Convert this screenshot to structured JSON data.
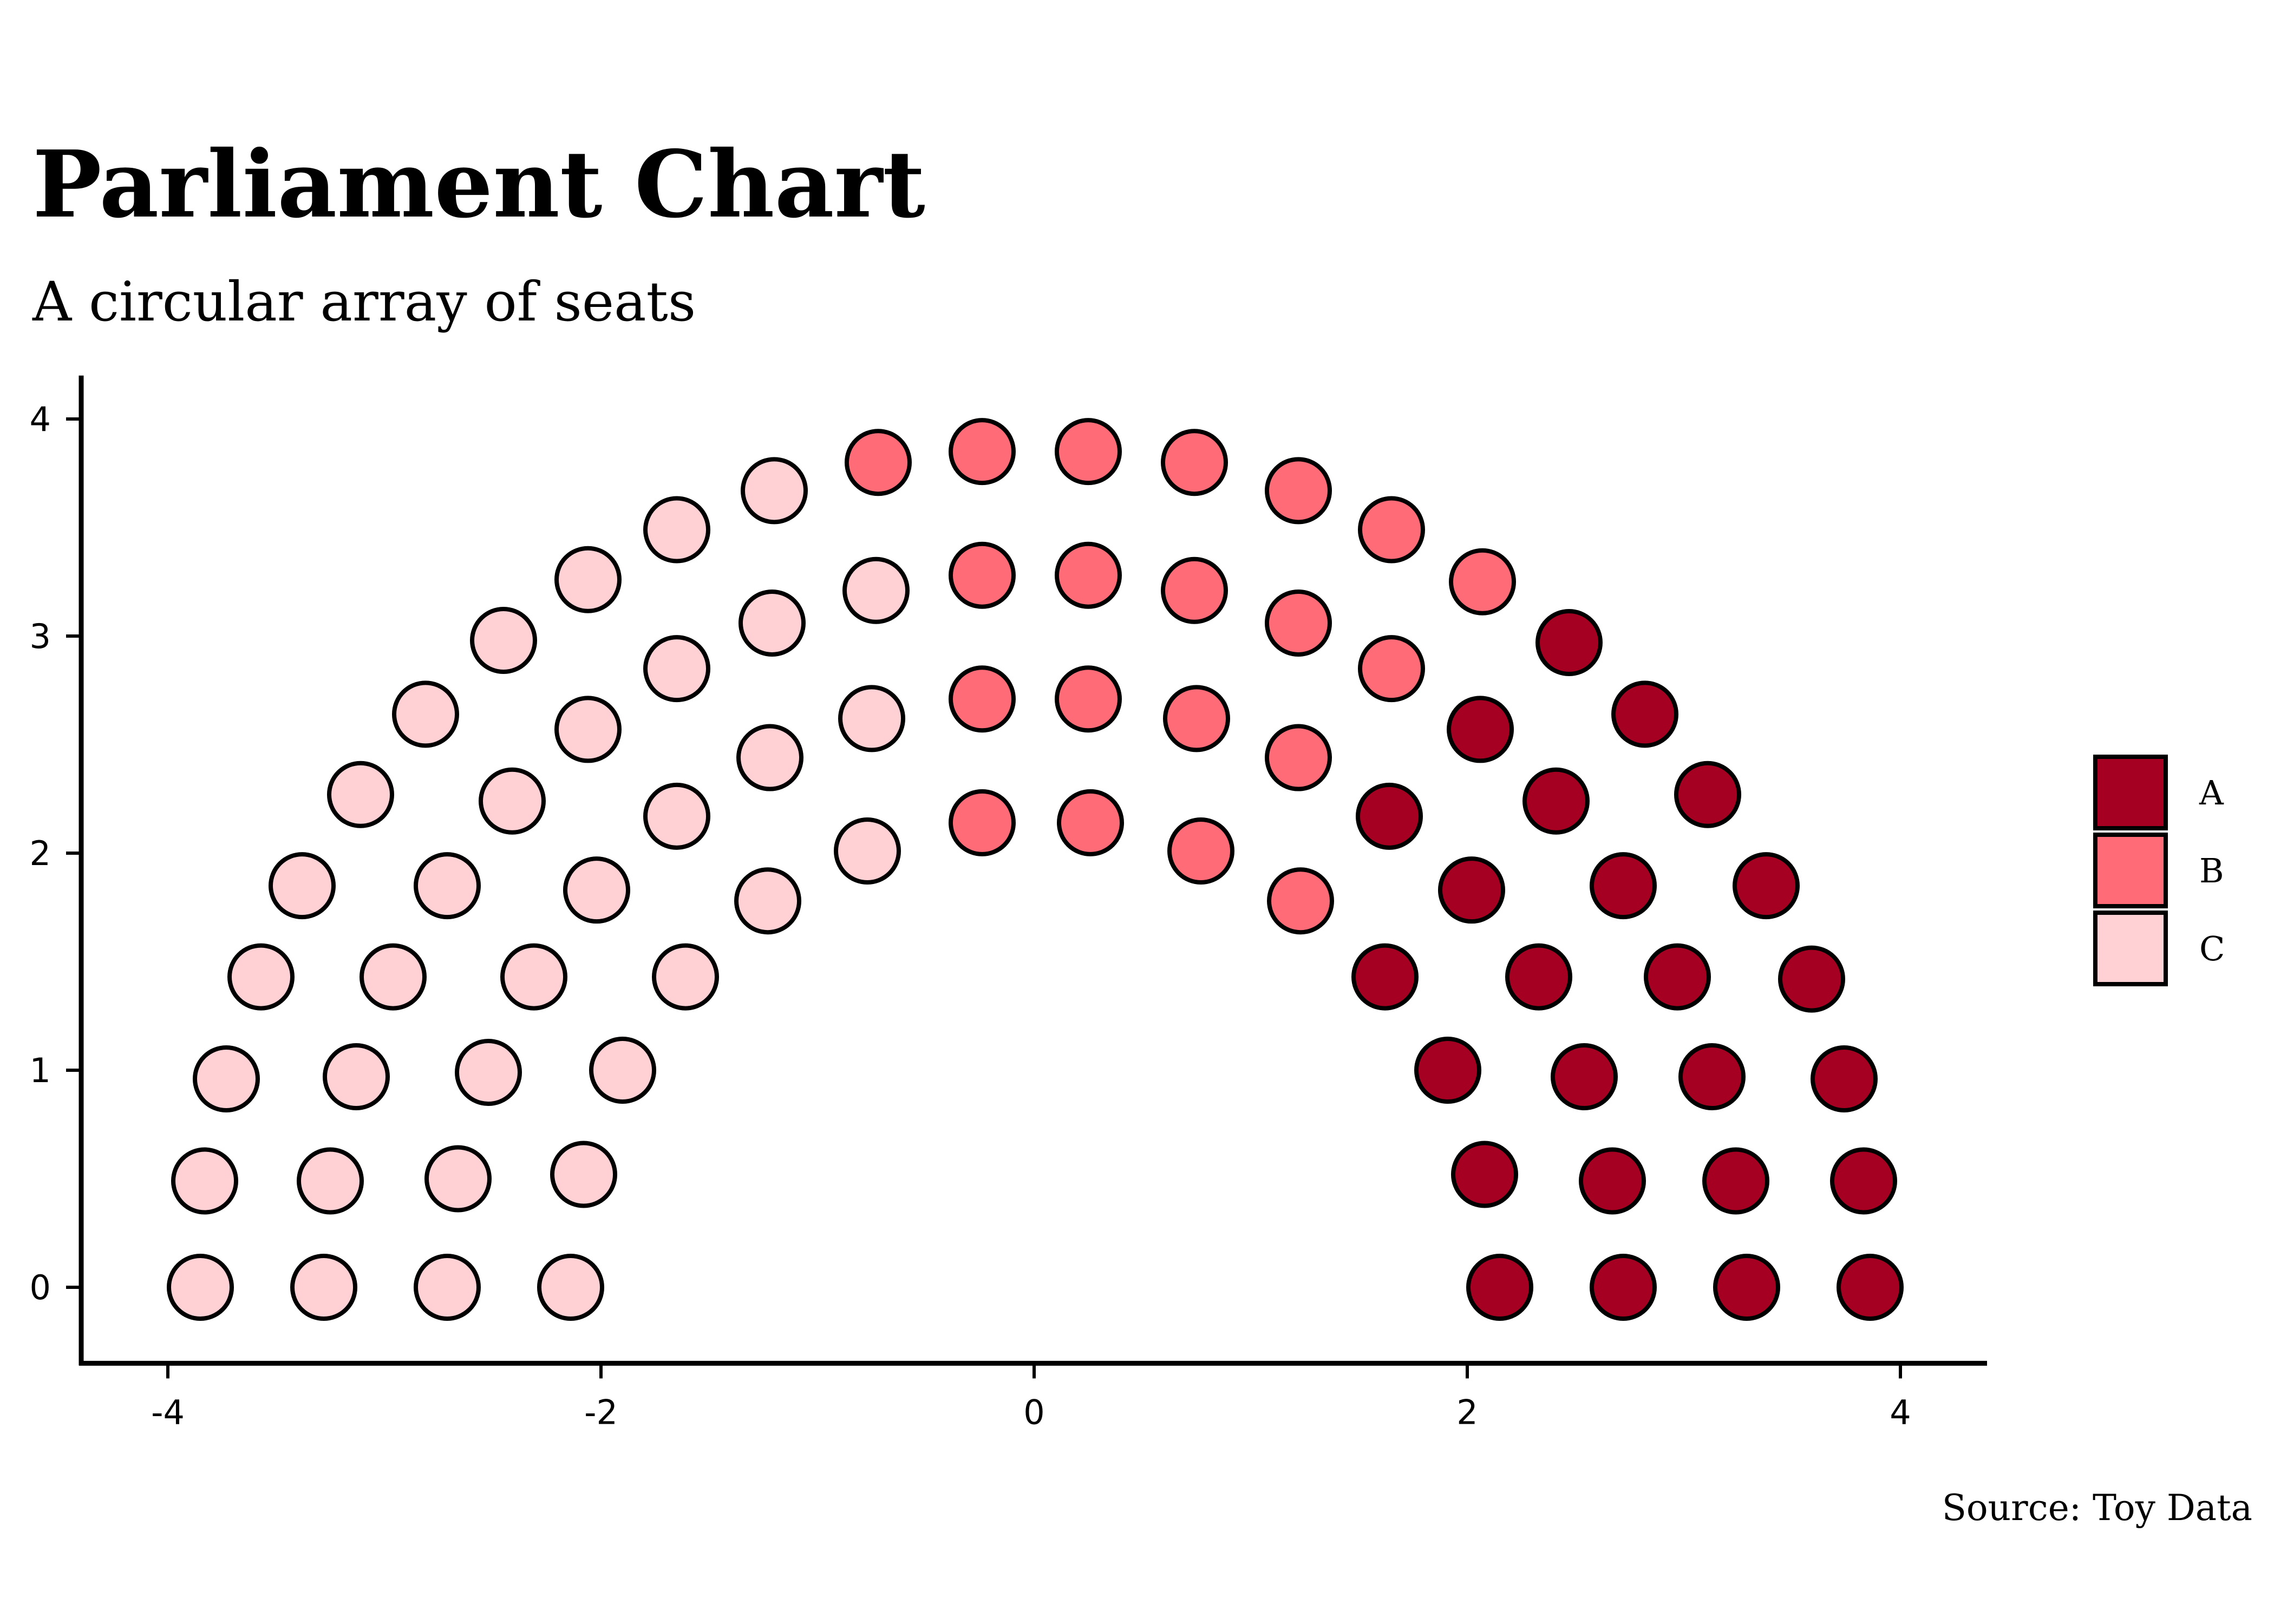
{
  "chart_data": {
    "type": "scatter",
    "title": "Parliament Chart",
    "subtitle": "A circular array of seats",
    "caption": "Source: Toy Data",
    "xlabel": "",
    "ylabel": "",
    "xlim": [
      -4.4,
      4.4
    ],
    "ylim": [
      -0.35,
      4.2
    ],
    "x_ticks": [
      -4,
      -2,
      0,
      2,
      4
    ],
    "y_ticks": [
      0,
      1,
      2,
      3,
      4
    ],
    "x_tick_labels": [
      "-4",
      "-2",
      "0",
      "2",
      "4"
    ],
    "y_tick_labels": [
      "0",
      "1",
      "2",
      "3",
      "4"
    ],
    "grid": false,
    "legend_position": "right",
    "legend": [
      {
        "key": "A",
        "label": "A",
        "color": "#A50021"
      },
      {
        "key": "B",
        "label": "B",
        "color": "#FF6C78"
      },
      {
        "key": "C",
        "label": "C",
        "color": "#FFD1D4"
      }
    ],
    "series": [
      {
        "party": "A",
        "color": "#A50021",
        "points": [
          [
            2.15,
            0.0
          ],
          [
            2.72,
            0.0
          ],
          [
            3.29,
            0.0
          ],
          [
            3.86,
            0.0
          ],
          [
            2.08,
            0.52
          ],
          [
            2.67,
            0.49
          ],
          [
            3.24,
            0.49
          ],
          [
            3.83,
            0.49
          ],
          [
            1.91,
            1.0
          ],
          [
            2.54,
            0.97
          ],
          [
            3.13,
            0.97
          ],
          [
            3.74,
            0.96
          ],
          [
            1.62,
            1.43
          ],
          [
            2.33,
            1.43
          ],
          [
            2.97,
            1.43
          ],
          [
            3.59,
            1.42
          ],
          [
            1.64,
            2.17
          ],
          [
            2.02,
            1.83
          ],
          [
            2.72,
            1.85
          ],
          [
            3.38,
            1.85
          ],
          [
            2.06,
            2.57
          ],
          [
            2.41,
            2.24
          ],
          [
            3.11,
            2.27
          ],
          [
            2.47,
            2.97
          ],
          [
            2.82,
            2.64
          ]
        ]
      },
      {
        "party": "B",
        "color": "#FF6C78",
        "points": [
          [
            -0.72,
            3.8
          ],
          [
            -0.24,
            3.85
          ],
          [
            0.25,
            3.85
          ],
          [
            0.74,
            3.8
          ],
          [
            1.22,
            3.67
          ],
          [
            1.65,
            3.49
          ],
          [
            2.07,
            3.25
          ],
          [
            -0.24,
            3.28
          ],
          [
            0.25,
            3.28
          ],
          [
            0.74,
            3.21
          ],
          [
            1.22,
            3.06
          ],
          [
            1.65,
            2.85
          ],
          [
            -0.24,
            2.71
          ],
          [
            0.25,
            2.71
          ],
          [
            0.75,
            2.62
          ],
          [
            1.22,
            2.44
          ],
          [
            -0.24,
            2.14
          ],
          [
            0.26,
            2.14
          ],
          [
            0.77,
            2.01
          ],
          [
            1.23,
            1.78
          ]
        ]
      },
      {
        "party": "C",
        "color": "#FFD1D4",
        "points": [
          [
            -3.85,
            0.0
          ],
          [
            -3.28,
            0.0
          ],
          [
            -2.71,
            0.0
          ],
          [
            -2.14,
            0.0
          ],
          [
            -3.83,
            0.49
          ],
          [
            -3.25,
            0.49
          ],
          [
            -2.66,
            0.5
          ],
          [
            -2.08,
            0.52
          ],
          [
            -3.73,
            0.96
          ],
          [
            -3.13,
            0.97
          ],
          [
            -2.52,
            0.99
          ],
          [
            -1.9,
            1.0
          ],
          [
            -3.57,
            1.43
          ],
          [
            -2.96,
            1.43
          ],
          [
            -2.31,
            1.43
          ],
          [
            -1.61,
            1.43
          ],
          [
            -3.38,
            1.85
          ],
          [
            -2.71,
            1.85
          ],
          [
            -2.02,
            1.83
          ],
          [
            -3.11,
            2.27
          ],
          [
            -2.41,
            2.24
          ],
          [
            -1.65,
            2.17
          ],
          [
            -2.81,
            2.64
          ],
          [
            -2.06,
            2.57
          ],
          [
            -1.23,
            1.78
          ],
          [
            -2.45,
            2.98
          ],
          [
            -1.65,
            2.85
          ],
          [
            -0.77,
            2.01
          ],
          [
            -2.06,
            3.26
          ],
          [
            -1.22,
            2.44
          ],
          [
            -0.75,
            2.62
          ],
          [
            -1.65,
            3.49
          ],
          [
            -1.21,
            3.06
          ],
          [
            -0.73,
            3.21
          ],
          [
            -1.2,
            3.67
          ]
        ]
      }
    ]
  }
}
